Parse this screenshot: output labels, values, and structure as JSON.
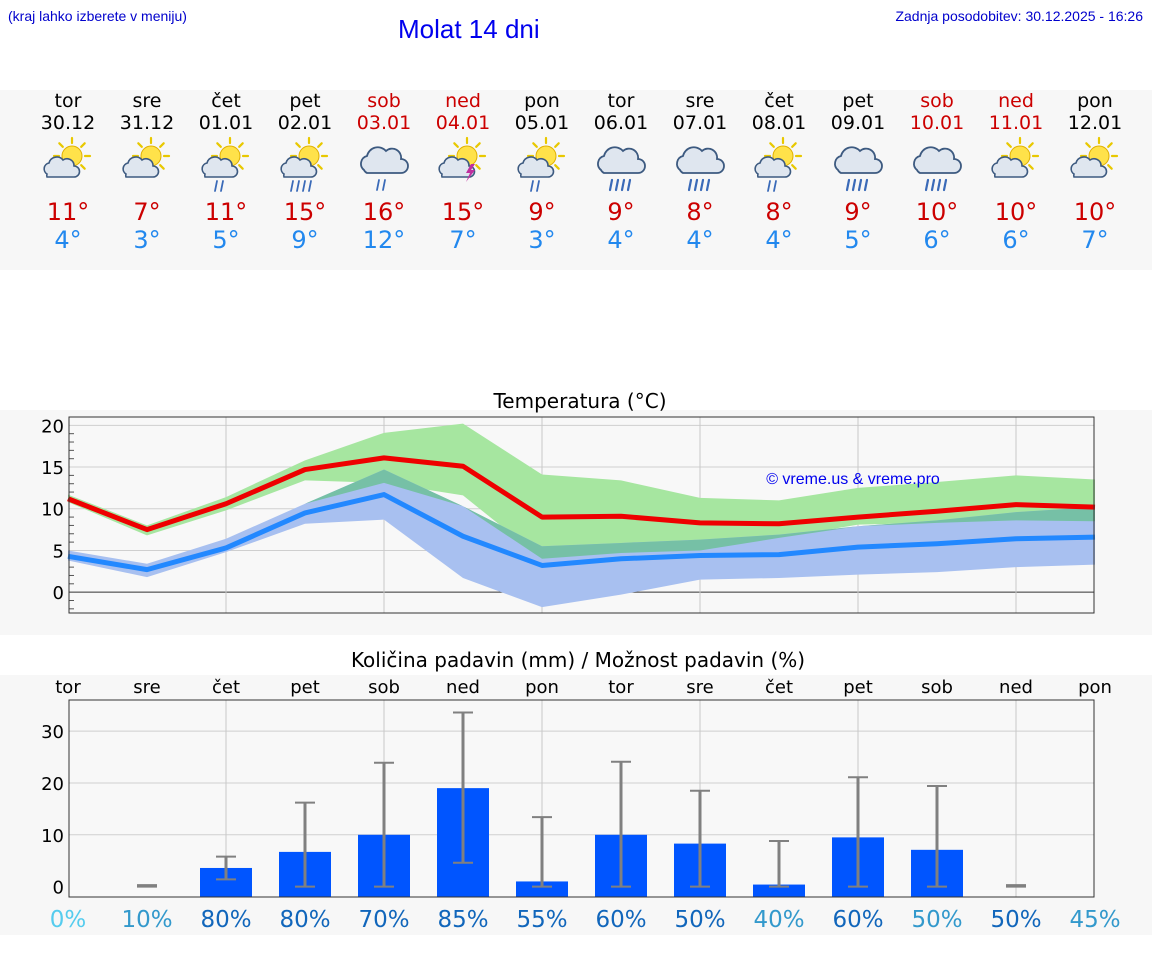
{
  "header": {
    "menu_hint": "(kraj lahko izberete v meniju)",
    "title": "Molat 14 dni",
    "updated": "Zadnja posodobitev: 30.12.2025 - 16:26"
  },
  "forecast": {
    "days": [
      {
        "weekday": "tor",
        "date": "30.12",
        "weekend": false,
        "icon": "sun-cloud-icon",
        "tmax": "11°",
        "tmin": "4°"
      },
      {
        "weekday": "sre",
        "date": "31.12",
        "weekend": false,
        "icon": "sun-cloud-icon",
        "tmax": "7°",
        "tmin": "3°"
      },
      {
        "weekday": "čet",
        "date": "01.01",
        "weekend": false,
        "icon": "sun-cloud-light-rain-icon",
        "tmax": "11°",
        "tmin": "5°"
      },
      {
        "weekday": "pet",
        "date": "02.01",
        "weekend": false,
        "icon": "sun-cloud-rain-icon",
        "tmax": "15°",
        "tmin": "9°"
      },
      {
        "weekday": "sob",
        "date": "03.01",
        "weekend": true,
        "icon": "cloud-light-rain-icon",
        "tmax": "16°",
        "tmin": "12°"
      },
      {
        "weekday": "ned",
        "date": "04.01",
        "weekend": true,
        "icon": "sun-cloud-thunder-icon",
        "tmax": "15°",
        "tmin": "7°"
      },
      {
        "weekday": "pon",
        "date": "05.01",
        "weekend": false,
        "icon": "sun-cloud-light-rain-icon",
        "tmax": "9°",
        "tmin": "3°"
      },
      {
        "weekday": "tor",
        "date": "06.01",
        "weekend": false,
        "icon": "cloud-rain-icon",
        "tmax": "9°",
        "tmin": "4°"
      },
      {
        "weekday": "sre",
        "date": "07.01",
        "weekend": false,
        "icon": "cloud-rain-icon",
        "tmax": "8°",
        "tmin": "4°"
      },
      {
        "weekday": "čet",
        "date": "08.01",
        "weekend": false,
        "icon": "sun-cloud-light-rain-icon",
        "tmax": "8°",
        "tmin": "4°"
      },
      {
        "weekday": "pet",
        "date": "09.01",
        "weekend": false,
        "icon": "cloud-rain-icon",
        "tmax": "9°",
        "tmin": "5°"
      },
      {
        "weekday": "sob",
        "date": "10.01",
        "weekend": true,
        "icon": "cloud-rain-icon",
        "tmax": "10°",
        "tmin": "6°"
      },
      {
        "weekday": "ned",
        "date": "11.01",
        "weekend": true,
        "icon": "sun-cloud-icon",
        "tmax": "10°",
        "tmin": "6°"
      },
      {
        "weekday": "pon",
        "date": "12.01",
        "weekend": false,
        "icon": "sun-cloud-icon",
        "tmax": "10°",
        "tmin": "7°"
      }
    ]
  },
  "colors": {
    "weekend": "#cc0000",
    "weekday": "#000000",
    "tmax": "#cc0000",
    "tmin": "#2288ee",
    "max_line": "#ee0000",
    "min_line": "#2288ff",
    "max_band": "#a6e6a0",
    "min_band": "#a8c0f0",
    "overlap_band": "#76c0a6",
    "precip_bar": "#0055ff",
    "error_bar": "#808080",
    "copyright": "#0000ee",
    "prob_low": "#55cceee",
    "prob_mid": "#3399cc",
    "prob_high": "#1166bb"
  },
  "chart_data": [
    {
      "type": "line",
      "title": "Temperatura (°C)",
      "ylim": [
        -2.5,
        21
      ],
      "yticks": [
        0,
        5,
        10,
        15,
        20
      ],
      "grid": true,
      "annotation": "© vreme.us & vreme.pro",
      "series": [
        {
          "name": "max",
          "values": [
            11.2,
            7.5,
            10.6,
            14.7,
            16.1,
            15.1,
            9.0,
            9.1,
            8.3,
            8.2,
            9.0,
            9.7,
            10.5,
            10.2
          ],
          "band_low": [
            10.8,
            6.8,
            9.8,
            13.4,
            13.1,
            11.6,
            4.0,
            4.7,
            5.0,
            6.5,
            8.1,
            8.3,
            8.6,
            8.5
          ],
          "band_high": [
            11.7,
            8.0,
            11.4,
            15.8,
            19.1,
            20.2,
            14.1,
            13.4,
            11.3,
            11.0,
            12.5,
            13.2,
            14.0,
            13.5
          ]
        },
        {
          "name": "min",
          "values": [
            4.3,
            2.7,
            5.3,
            9.5,
            11.7,
            6.7,
            3.2,
            4.0,
            4.4,
            4.5,
            5.4,
            5.8,
            6.4,
            6.6
          ],
          "band_low": [
            3.8,
            1.8,
            4.8,
            8.2,
            8.7,
            1.7,
            -1.8,
            -0.3,
            1.5,
            1.7,
            2.1,
            2.4,
            3.0,
            3.3
          ],
          "band_high": [
            5.0,
            3.4,
            6.4,
            10.6,
            14.7,
            10.3,
            5.5,
            5.9,
            6.3,
            6.9,
            7.9,
            8.6,
            9.6,
            10.2
          ]
        }
      ]
    },
    {
      "type": "bar",
      "title": "Količina padavin (mm) / Možnost padavin (%)",
      "categories": [
        "tor",
        "sre",
        "čet",
        "pet",
        "sob",
        "ned",
        "pon",
        "tor",
        "sre",
        "čet",
        "pet",
        "sob",
        "ned",
        "pon"
      ],
      "ylim": [
        -2,
        36
      ],
      "yticks": [
        0,
        10,
        20,
        30
      ],
      "grid": true,
      "values": [
        0,
        0,
        3.6,
        6.7,
        10,
        19,
        1,
        10,
        8.3,
        0.4,
        9.5,
        7.1,
        0,
        0
      ],
      "err_low": [
        0,
        0,
        1.4,
        0,
        0,
        4.6,
        0,
        0,
        0,
        0,
        0,
        0,
        0,
        0
      ],
      "err_high": [
        0,
        0.3,
        5.8,
        16.2,
        23.9,
        33.6,
        13.4,
        24.1,
        18.5,
        8.8,
        21.1,
        19.4,
        0.3,
        0
      ],
      "probabilities": [
        "0%",
        "10%",
        "80%",
        "80%",
        "70%",
        "85%",
        "55%",
        "60%",
        "50%",
        "40%",
        "60%",
        "50%",
        "50%",
        "45%"
      ],
      "probability_levels": [
        "low",
        "mid",
        "high",
        "high",
        "high",
        "high",
        "high",
        "high",
        "high",
        "mid",
        "high",
        "mid",
        "high",
        "mid"
      ]
    }
  ]
}
